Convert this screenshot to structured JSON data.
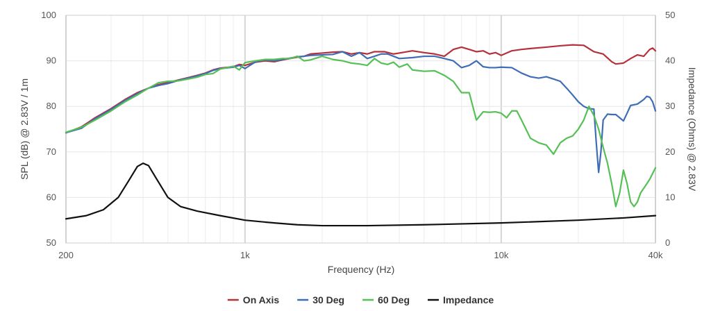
{
  "chart_data": {
    "type": "line",
    "title": "",
    "xlabel": "Frequency (Hz)",
    "ylabel": "SPL (dB) @ 2.83V / 1m",
    "y2label": "Impedance (Ohms) @ 2.83V",
    "x_scale": "log",
    "xlim": [
      200,
      40000
    ],
    "ylim": [
      50,
      100
    ],
    "y2lim": [
      0,
      50
    ],
    "x_ticks": [
      {
        "value": 200,
        "label": "200"
      },
      {
        "value": 1000,
        "label": "1k"
      },
      {
        "value": 10000,
        "label": "10k"
      },
      {
        "value": 40000,
        "label": "40k"
      }
    ],
    "y_ticks": [
      50,
      60,
      70,
      80,
      90,
      100
    ],
    "y2_ticks": [
      0,
      10,
      20,
      30,
      40,
      50
    ],
    "grid": true,
    "legend_position": "bottom-center",
    "series": [
      {
        "name": "On Axis",
        "axis": "left",
        "color": "#b5303a",
        "points": [
          [
            200,
            74.2
          ],
          [
            230,
            75.5
          ],
          [
            260,
            77.5
          ],
          [
            300,
            79.5
          ],
          [
            340,
            81.5
          ],
          [
            380,
            83
          ],
          [
            420,
            84
          ],
          [
            460,
            84.8
          ],
          [
            500,
            85.2
          ],
          [
            550,
            85.8
          ],
          [
            600,
            86.3
          ],
          [
            650,
            86.8
          ],
          [
            700,
            87.3
          ],
          [
            750,
            88
          ],
          [
            800,
            88.4
          ],
          [
            900,
            88.7
          ],
          [
            950,
            89.2
          ],
          [
            1000,
            89
          ],
          [
            1100,
            89.7
          ],
          [
            1200,
            90
          ],
          [
            1300,
            89.8
          ],
          [
            1400,
            90.2
          ],
          [
            1500,
            90.5
          ],
          [
            1600,
            90.8
          ],
          [
            1700,
            91
          ],
          [
            1800,
            91.5
          ],
          [
            2000,
            91.7
          ],
          [
            2200,
            91.9
          ],
          [
            2400,
            92
          ],
          [
            2600,
            91.5
          ],
          [
            2800,
            91.8
          ],
          [
            3000,
            91.5
          ],
          [
            3200,
            92
          ],
          [
            3500,
            92
          ],
          [
            3800,
            91.5
          ],
          [
            4000,
            91.7
          ],
          [
            4500,
            92.2
          ],
          [
            5000,
            91.8
          ],
          [
            5500,
            91.5
          ],
          [
            6000,
            91
          ],
          [
            6500,
            92.5
          ],
          [
            7000,
            93
          ],
          [
            7500,
            92.5
          ],
          [
            8000,
            92
          ],
          [
            8500,
            92.2
          ],
          [
            9000,
            91.5
          ],
          [
            9500,
            91.8
          ],
          [
            10000,
            91.2
          ],
          [
            11000,
            92.2
          ],
          [
            12000,
            92.5
          ],
          [
            13000,
            92.7
          ],
          [
            15000,
            93
          ],
          [
            17000,
            93.3
          ],
          [
            19000,
            93.5
          ],
          [
            21000,
            93.4
          ],
          [
            23000,
            92
          ],
          [
            25000,
            91.5
          ],
          [
            27000,
            89.8
          ],
          [
            28000,
            89.3
          ],
          [
            30000,
            89.5
          ],
          [
            32000,
            90.5
          ],
          [
            34000,
            91.3
          ],
          [
            36000,
            91
          ],
          [
            38000,
            92.5
          ],
          [
            39000,
            92.8
          ],
          [
            40000,
            92.2
          ]
        ]
      },
      {
        "name": "30 Deg",
        "axis": "left",
        "color": "#3e6db5",
        "points": [
          [
            200,
            74.2
          ],
          [
            230,
            75.2
          ],
          [
            260,
            77.3
          ],
          [
            300,
            79.3
          ],
          [
            340,
            81.3
          ],
          [
            380,
            82.8
          ],
          [
            420,
            84
          ],
          [
            460,
            84.6
          ],
          [
            500,
            85
          ],
          [
            550,
            85.7
          ],
          [
            600,
            86.2
          ],
          [
            650,
            86.7
          ],
          [
            700,
            87.2
          ],
          [
            750,
            87.9
          ],
          [
            800,
            88.3
          ],
          [
            900,
            88.6
          ],
          [
            950,
            89
          ],
          [
            1000,
            88.3
          ],
          [
            1100,
            89.8
          ],
          [
            1200,
            90.2
          ],
          [
            1300,
            90
          ],
          [
            1400,
            90.3
          ],
          [
            1500,
            90.6
          ],
          [
            1600,
            90.9
          ],
          [
            1700,
            91
          ],
          [
            1800,
            91.2
          ],
          [
            2000,
            91.3
          ],
          [
            2200,
            91.4
          ],
          [
            2400,
            92
          ],
          [
            2600,
            91
          ],
          [
            2800,
            91.8
          ],
          [
            3000,
            90.5
          ],
          [
            3200,
            91
          ],
          [
            3400,
            91.5
          ],
          [
            3600,
            91.5
          ],
          [
            3800,
            91
          ],
          [
            4000,
            90.5
          ],
          [
            4500,
            90.7
          ],
          [
            5000,
            91
          ],
          [
            5500,
            91
          ],
          [
            6000,
            90.5
          ],
          [
            6500,
            90
          ],
          [
            7000,
            88.5
          ],
          [
            7500,
            89
          ],
          [
            8000,
            90
          ],
          [
            8500,
            88.7
          ],
          [
            9000,
            88.5
          ],
          [
            9500,
            88.5
          ],
          [
            10000,
            88.6
          ],
          [
            11000,
            88.5
          ],
          [
            12000,
            87.3
          ],
          [
            13000,
            86.5
          ],
          [
            14000,
            86.2
          ],
          [
            15000,
            86.5
          ],
          [
            16000,
            86
          ],
          [
            17000,
            85.5
          ],
          [
            18000,
            84
          ],
          [
            19000,
            82.5
          ],
          [
            20000,
            81
          ],
          [
            21000,
            80
          ],
          [
            22000,
            79.5
          ],
          [
            23000,
            79.4
          ],
          [
            23500,
            72
          ],
          [
            24000,
            65.5
          ],
          [
            24500,
            70
          ],
          [
            25000,
            77
          ],
          [
            26000,
            78.3
          ],
          [
            27000,
            78.2
          ],
          [
            28000,
            78.2
          ],
          [
            29000,
            77.5
          ],
          [
            30000,
            76.8
          ],
          [
            31000,
            78.5
          ],
          [
            32000,
            80.2
          ],
          [
            34000,
            80.5
          ],
          [
            36000,
            81.5
          ],
          [
            37000,
            82.2
          ],
          [
            38000,
            82
          ],
          [
            39000,
            81
          ],
          [
            40000,
            79
          ]
        ]
      },
      {
        "name": "60 Deg",
        "axis": "left",
        "color": "#55c055",
        "points": [
          [
            200,
            74.3
          ],
          [
            230,
            75.4
          ],
          [
            260,
            77
          ],
          [
            300,
            79
          ],
          [
            340,
            81
          ],
          [
            380,
            82.5
          ],
          [
            420,
            84
          ],
          [
            460,
            85.2
          ],
          [
            500,
            85.5
          ],
          [
            550,
            85.6
          ],
          [
            600,
            86
          ],
          [
            650,
            86.4
          ],
          [
            700,
            87
          ],
          [
            750,
            87.2
          ],
          [
            800,
            88.2
          ],
          [
            900,
            88.8
          ],
          [
            950,
            88
          ],
          [
            1000,
            89.6
          ],
          [
            1100,
            90
          ],
          [
            1200,
            90.3
          ],
          [
            1300,
            90.3
          ],
          [
            1400,
            90.5
          ],
          [
            1500,
            90.5
          ],
          [
            1600,
            91
          ],
          [
            1700,
            90
          ],
          [
            1800,
            90.2
          ],
          [
            2000,
            91
          ],
          [
            2200,
            90.3
          ],
          [
            2400,
            90
          ],
          [
            2600,
            89.5
          ],
          [
            2800,
            89.3
          ],
          [
            3000,
            89
          ],
          [
            3200,
            90.5
          ],
          [
            3400,
            89.5
          ],
          [
            3600,
            89.2
          ],
          [
            3800,
            89.7
          ],
          [
            4000,
            88.6
          ],
          [
            4300,
            89.3
          ],
          [
            4500,
            88
          ],
          [
            5000,
            87.7
          ],
          [
            5500,
            87.8
          ],
          [
            6000,
            86.8
          ],
          [
            6500,
            85.5
          ],
          [
            7000,
            83
          ],
          [
            7500,
            83
          ],
          [
            8000,
            77
          ],
          [
            8500,
            78.8
          ],
          [
            9000,
            78.7
          ],
          [
            9500,
            78.8
          ],
          [
            10000,
            78.5
          ],
          [
            10500,
            77.5
          ],
          [
            11000,
            79
          ],
          [
            11500,
            79
          ],
          [
            12000,
            77
          ],
          [
            13000,
            73
          ],
          [
            14000,
            72
          ],
          [
            15000,
            71.5
          ],
          [
            16000,
            69.5
          ],
          [
            17000,
            72
          ],
          [
            18000,
            73
          ],
          [
            19000,
            73.5
          ],
          [
            20000,
            75
          ],
          [
            21000,
            77
          ],
          [
            22000,
            80
          ],
          [
            23000,
            78
          ],
          [
            24000,
            75
          ],
          [
            25000,
            71
          ],
          [
            26000,
            67.5
          ],
          [
            27000,
            63
          ],
          [
            28000,
            58
          ],
          [
            29000,
            61
          ],
          [
            30000,
            66
          ],
          [
            31000,
            63
          ],
          [
            32000,
            59
          ],
          [
            33000,
            58
          ],
          [
            34000,
            59
          ],
          [
            35000,
            61
          ],
          [
            37000,
            63
          ],
          [
            38000,
            64
          ],
          [
            40000,
            66.5
          ]
        ]
      },
      {
        "name": "Impedance",
        "axis": "right",
        "color": "#111111",
        "points": [
          [
            200,
            5.3
          ],
          [
            240,
            6
          ],
          [
            280,
            7.3
          ],
          [
            320,
            10
          ],
          [
            350,
            13.5
          ],
          [
            380,
            16.8
          ],
          [
            400,
            17.5
          ],
          [
            420,
            17
          ],
          [
            450,
            14.2
          ],
          [
            500,
            10
          ],
          [
            560,
            8
          ],
          [
            650,
            7
          ],
          [
            800,
            6
          ],
          [
            1000,
            5
          ],
          [
            1300,
            4.4
          ],
          [
            1600,
            4
          ],
          [
            2000,
            3.8
          ],
          [
            3000,
            3.8
          ],
          [
            5000,
            4
          ],
          [
            10000,
            4.4
          ],
          [
            20000,
            5
          ],
          [
            30000,
            5.5
          ],
          [
            40000,
            6
          ]
        ]
      }
    ]
  }
}
